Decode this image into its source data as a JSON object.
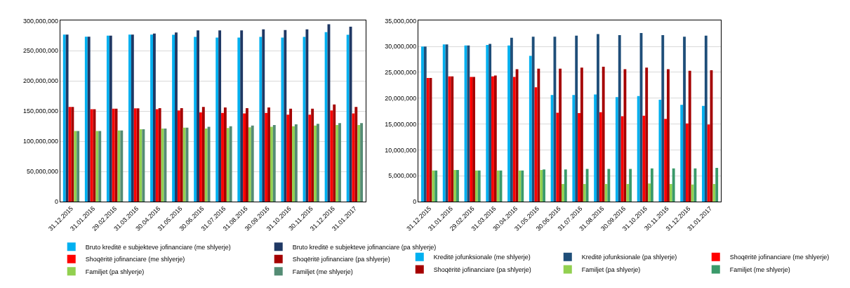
{
  "chart_data": [
    {
      "type": "bar",
      "categories": [
        "31.12.2015",
        "31.01.2016",
        "29.02.2016",
        "31.03.2016",
        "30.04.2016",
        "31.05.2016",
        "30.06.2016",
        "31.07.2016",
        "31.08.2016",
        "30.09.2016",
        "31.10.2016",
        "30.11.2016",
        "31.12.2016",
        "31.01.2017"
      ],
      "series": [
        {
          "name": "Bruto kreditë e subjekteve jofinanciare (me shlyerje)",
          "color": "#00b0f0",
          "values": [
            277000000,
            273500000,
            275000000,
            277000000,
            277000000,
            276500000,
            273000000,
            272000000,
            272000000,
            273000000,
            272000000,
            273000000,
            281000000,
            276500000
          ]
        },
        {
          "name": "Bruto kreditë e subjekteve jofinanciare (pa shlyerje)",
          "color": "#1f3864",
          "values": [
            277000000,
            273500000,
            275000000,
            277000000,
            278500000,
            280500000,
            284000000,
            284000000,
            284000000,
            285500000,
            284500000,
            285500000,
            294000000,
            290000000
          ]
        },
        {
          "name": "Shoqëritë jofinanciare (me shlyerje)",
          "color": "#ff0000",
          "values": [
            157000000,
            153000000,
            154000000,
            154500000,
            153000000,
            151000000,
            148000000,
            147000000,
            146000000,
            147000000,
            144000000,
            144000000,
            151000000,
            146000000
          ]
        },
        {
          "name": "Shoqëritë jofinanciare (pa shlyerje)",
          "color": "#a50000",
          "values": [
            157000000,
            153000000,
            154000000,
            154500000,
            155000000,
            155000000,
            157000000,
            156000000,
            155000000,
            156000000,
            154000000,
            154000000,
            161000000,
            157000000
          ]
        },
        {
          "name": "Familjet (pa shlyerje)",
          "color": "#92d050",
          "values": [
            117000000,
            117000000,
            118000000,
            120000000,
            121000000,
            122500000,
            121000000,
            122000000,
            123000000,
            124000000,
            125000000,
            126000000,
            127000000,
            127000000
          ]
        },
        {
          "name": "Familjet (me shlyerje)",
          "color": "#548c74",
          "values": [
            117000000,
            117000000,
            118000000,
            120000000,
            121000000,
            122500000,
            124000000,
            125000000,
            126000000,
            127000000,
            128000000,
            129000000,
            130000000,
            130000000
          ]
        }
      ],
      "ylim": [
        0,
        300000000
      ],
      "yticks": [
        0,
        {
          "value": 50000000,
          "label": "50,000,000"
        },
        {
          "value": 100000000,
          "label": "100,000,000"
        },
        {
          "value": 150000000,
          "label": "150,000,000"
        },
        {
          "value": 200000000,
          "label": "200,000,000"
        },
        {
          "value": 250000000,
          "label": "250,000,000"
        },
        {
          "value": 300000000,
          "label": "300,000,000"
        }
      ],
      "grid": "y",
      "legend": "bottom"
    },
    {
      "type": "bar",
      "categories": [
        "31.12.2015",
        "31.01.2016",
        "29.02.2016",
        "31.03.2016",
        "30.04.2016",
        "31.05.2016",
        "30.06.2016",
        "31.07.2016",
        "31.08.2016",
        "30.09.2016",
        "31.10.2016",
        "30.11.2016",
        "31.12.2016",
        "31.01.2017"
      ],
      "series": [
        {
          "name": "Kreditë jofunksionale (me shlyerje)",
          "color": "#00b0f0",
          "values": [
            30000000,
            30400000,
            30200000,
            30300000,
            30200000,
            28200000,
            20600000,
            20600000,
            20700000,
            20200000,
            20400000,
            19700000,
            18700000,
            18500000
          ]
        },
        {
          "name": "Kreditë jofunksionale (pa shlyerje)",
          "color": "#1f4e79",
          "values": [
            30000000,
            30400000,
            30200000,
            30500000,
            31700000,
            31900000,
            31900000,
            32100000,
            32400000,
            32200000,
            32600000,
            32200000,
            31900000,
            32100000
          ]
        },
        {
          "name": "Shoqëritë jofinanciare (me shlyerje)",
          "color": "#ff0000",
          "values": [
            23900000,
            24200000,
            24100000,
            24200000,
            24100000,
            22100000,
            17200000,
            17100000,
            17300000,
            16500000,
            16600000,
            16000000,
            15100000,
            14900000
          ]
        },
        {
          "name": "Shoqëritë jofinanciare (pa shlyerje)",
          "color": "#a50000",
          "values": [
            23900000,
            24200000,
            24100000,
            24400000,
            25600000,
            25700000,
            25700000,
            25900000,
            26100000,
            25600000,
            25900000,
            25600000,
            25300000,
            25400000
          ]
        },
        {
          "name": "Familjet (pa shlyerje)",
          "color": "#92d050",
          "values": [
            6000000,
            6100000,
            6000000,
            6000000,
            6000000,
            6100000,
            3400000,
            3400000,
            3400000,
            3400000,
            3500000,
            3400000,
            3300000,
            3400000
          ]
        },
        {
          "name": "Familjet (me shlyerje)",
          "color": "#3a9a6a",
          "values": [
            6000000,
            6100000,
            6000000,
            6000000,
            6000000,
            6200000,
            6200000,
            6300000,
            6300000,
            6300000,
            6400000,
            6400000,
            6400000,
            6500000
          ]
        }
      ],
      "ylim": [
        0,
        35000000
      ],
      "yticks": [
        0,
        {
          "value": 5000000,
          "label": "5,000,000"
        },
        {
          "value": 10000000,
          "label": "10,000,000"
        },
        {
          "value": 15000000,
          "label": "15,000,000"
        },
        {
          "value": 20000000,
          "label": "20,000,000"
        },
        {
          "value": 25000000,
          "label": "25,000,000"
        },
        {
          "value": 30000000,
          "label": "30,000,000"
        },
        {
          "value": 35000000,
          "label": "35,000,000"
        }
      ],
      "grid": "y",
      "legend": "bottom"
    }
  ]
}
